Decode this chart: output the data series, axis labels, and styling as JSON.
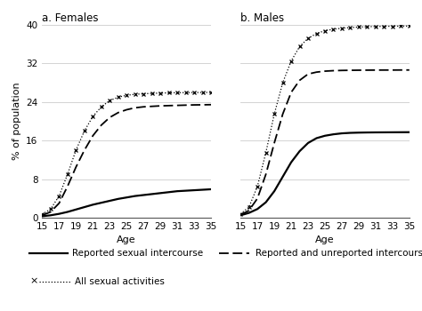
{
  "title_left": "a. Females",
  "title_right": "b. Males",
  "xlabel": "Age",
  "ylabel": "% of population",
  "xlim": [
    15,
    35
  ],
  "ylim": [
    0,
    40
  ],
  "yticks": [
    0,
    8,
    16,
    24,
    32,
    40
  ],
  "xticks": [
    15,
    17,
    19,
    21,
    23,
    25,
    27,
    29,
    31,
    33,
    35
  ],
  "ages": [
    15,
    16,
    17,
    18,
    19,
    20,
    21,
    22,
    23,
    24,
    25,
    26,
    27,
    28,
    29,
    30,
    31,
    32,
    33,
    34,
    35
  ],
  "females_reported": [
    0.3,
    0.5,
    0.8,
    1.2,
    1.7,
    2.2,
    2.7,
    3.1,
    3.5,
    3.9,
    4.2,
    4.5,
    4.7,
    4.9,
    5.1,
    5.3,
    5.5,
    5.6,
    5.7,
    5.8,
    5.9
  ],
  "females_reported_unreported": [
    0.5,
    1.2,
    3.0,
    6.5,
    10.5,
    14.0,
    17.0,
    19.2,
    20.8,
    21.8,
    22.4,
    22.8,
    23.0,
    23.1,
    23.2,
    23.25,
    23.3,
    23.35,
    23.4,
    23.42,
    23.45
  ],
  "females_all": [
    0.7,
    1.8,
    4.5,
    9.0,
    14.0,
    18.0,
    21.0,
    23.0,
    24.3,
    25.0,
    25.4,
    25.6,
    25.7,
    25.8,
    25.85,
    25.9,
    25.93,
    25.95,
    25.97,
    25.98,
    26.0
  ],
  "males_reported": [
    0.5,
    1.0,
    1.8,
    3.2,
    5.5,
    8.5,
    11.5,
    13.8,
    15.5,
    16.5,
    17.0,
    17.3,
    17.5,
    17.6,
    17.65,
    17.68,
    17.7,
    17.71,
    17.72,
    17.73,
    17.74
  ],
  "males_reported_unreported": [
    0.6,
    1.5,
    4.0,
    9.0,
    15.5,
    21.5,
    26.0,
    28.5,
    29.8,
    30.2,
    30.4,
    30.5,
    30.55,
    30.58,
    30.6,
    30.61,
    30.62,
    30.63,
    30.63,
    30.64,
    30.64
  ],
  "males_all": [
    0.8,
    2.2,
    6.5,
    13.5,
    21.5,
    28.0,
    32.5,
    35.5,
    37.2,
    38.2,
    38.8,
    39.1,
    39.3,
    39.45,
    39.55,
    39.62,
    39.67,
    39.7,
    39.72,
    39.74,
    39.76
  ],
  "color": "#000000",
  "legend_entries": [
    "Reported sexual intercourse",
    "Reported and unreported intercourse",
    "All sexual activities"
  ],
  "title_fontsize": 8.5,
  "label_fontsize": 8,
  "tick_fontsize": 7.5
}
